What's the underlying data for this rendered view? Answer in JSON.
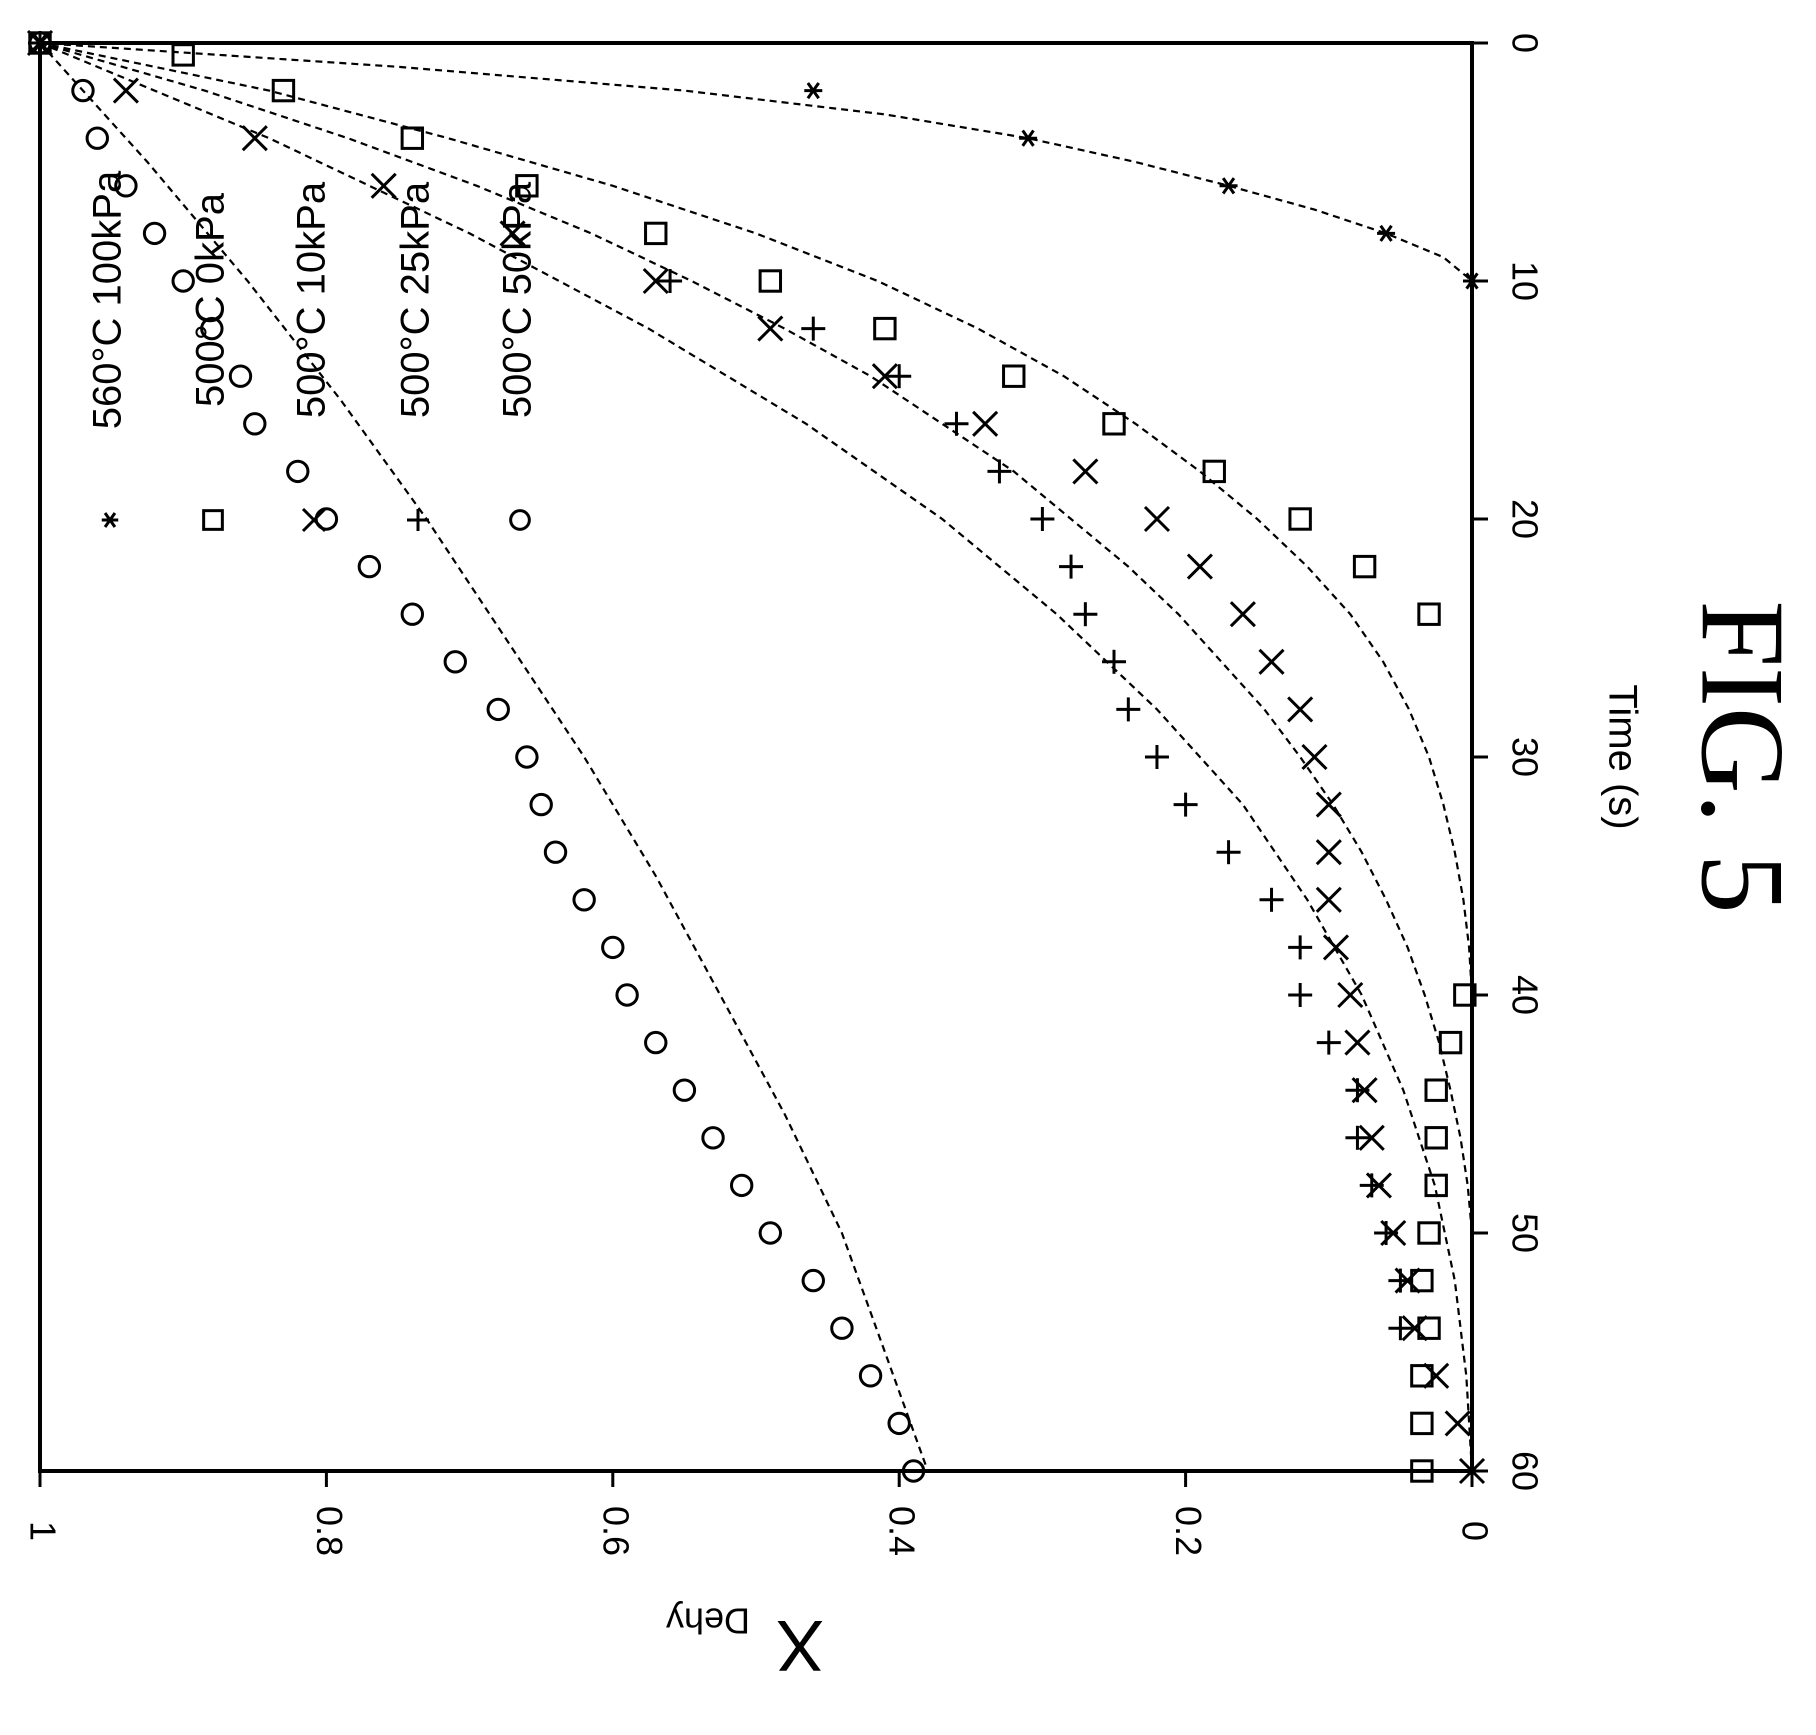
{
  "figure_label": "FIG. 5",
  "chart_data": {
    "type": "scatter",
    "title": "",
    "xlabel": "Time (s)",
    "ylabel_main": "X",
    "ylabel_sub": "Dehy",
    "xlim": [
      0,
      60
    ],
    "ylim": [
      0,
      1
    ],
    "x_ticks": [
      0,
      10,
      20,
      30,
      40,
      50,
      60
    ],
    "y_ticks": [
      0,
      0.2,
      0.4,
      0.6,
      0.8,
      1
    ],
    "y_tick_labels": [
      "0",
      "0.2",
      "0.4",
      "0.6",
      "0.8",
      "1"
    ],
    "orientation": "rotated 90 degrees clockwise",
    "grid": false,
    "legend_position": "top-left",
    "series": [
      {
        "name": "560°C 100kPa",
        "marker": "asterisk",
        "points": [
          [
            0,
            1.0
          ],
          [
            2,
            0.46
          ],
          [
            4,
            0.31
          ],
          [
            6,
            0.17
          ],
          [
            8,
            0.06
          ],
          [
            10,
            0.0
          ]
        ],
        "fit": [
          [
            0,
            1.0
          ],
          [
            1,
            0.75
          ],
          [
            2,
            0.55
          ],
          [
            3,
            0.41
          ],
          [
            4,
            0.31
          ],
          [
            5,
            0.235
          ],
          [
            6,
            0.17
          ],
          [
            7,
            0.11
          ],
          [
            8,
            0.06
          ],
          [
            9,
            0.02
          ],
          [
            10,
            0.0
          ]
        ]
      },
      {
        "name": "500°C 0kPa",
        "marker": "square",
        "points": [
          [
            0,
            1.0
          ],
          [
            0.5,
            0.9
          ],
          [
            2,
            0.83
          ],
          [
            4,
            0.74
          ],
          [
            6,
            0.66
          ],
          [
            8,
            0.57
          ],
          [
            10,
            0.49
          ],
          [
            12,
            0.41
          ],
          [
            14,
            0.32
          ],
          [
            16,
            0.25
          ],
          [
            18,
            0.18
          ],
          [
            20,
            0.12
          ],
          [
            22,
            0.075
          ],
          [
            24,
            0.03
          ],
          [
            40,
            0.005
          ],
          [
            42,
            0.015
          ],
          [
            44,
            0.025
          ],
          [
            46,
            0.025
          ],
          [
            48,
            0.025
          ],
          [
            50,
            0.03
          ],
          [
            52,
            0.035
          ],
          [
            54,
            0.03
          ],
          [
            56,
            0.035
          ],
          [
            58,
            0.035
          ],
          [
            60,
            0.035
          ]
        ],
        "fit": [
          [
            0,
            1.0
          ],
          [
            2,
            0.84
          ],
          [
            4,
            0.715
          ],
          [
            6,
            0.6
          ],
          [
            8,
            0.5
          ],
          [
            10,
            0.415
          ],
          [
            12,
            0.345
          ],
          [
            14,
            0.285
          ],
          [
            16,
            0.235
          ],
          [
            18,
            0.19
          ],
          [
            20,
            0.15
          ],
          [
            22,
            0.115
          ],
          [
            24,
            0.085
          ],
          [
            26,
            0.062
          ],
          [
            28,
            0.044
          ],
          [
            30,
            0.03
          ],
          [
            32,
            0.02
          ],
          [
            34,
            0.012
          ],
          [
            36,
            0.006
          ],
          [
            38,
            0.002
          ],
          [
            40,
            0.0
          ]
        ]
      },
      {
        "name": "500°C 10kPa",
        "marker": "x",
        "points": [
          [
            0,
            1.0
          ],
          [
            2,
            0.94
          ],
          [
            4,
            0.85
          ],
          [
            6,
            0.76
          ],
          [
            8,
            0.67
          ],
          [
            10,
            0.57
          ],
          [
            12,
            0.49
          ],
          [
            14,
            0.41
          ],
          [
            16,
            0.34
          ],
          [
            18,
            0.27
          ],
          [
            20,
            0.22
          ],
          [
            22,
            0.19
          ],
          [
            24,
            0.16
          ],
          [
            26,
            0.14
          ],
          [
            28,
            0.12
          ],
          [
            30,
            0.11
          ],
          [
            32,
            0.1
          ],
          [
            34,
            0.1
          ],
          [
            36,
            0.1
          ],
          [
            38,
            0.095
          ],
          [
            40,
            0.085
          ],
          [
            42,
            0.08
          ],
          [
            44,
            0.075
          ],
          [
            46,
            0.07
          ],
          [
            48,
            0.065
          ],
          [
            50,
            0.055
          ],
          [
            52,
            0.045
          ],
          [
            54,
            0.04
          ],
          [
            56,
            0.025
          ],
          [
            58,
            0.01
          ],
          [
            60,
            0.0
          ]
        ],
        "fit": [
          [
            0,
            1.0
          ],
          [
            2,
            0.885
          ],
          [
            4,
            0.785
          ],
          [
            6,
            0.695
          ],
          [
            8,
            0.615
          ],
          [
            10,
            0.545
          ],
          [
            12,
            0.48
          ],
          [
            14,
            0.42
          ],
          [
            16,
            0.37
          ],
          [
            18,
            0.32
          ],
          [
            20,
            0.28
          ],
          [
            22,
            0.24
          ],
          [
            24,
            0.205
          ],
          [
            26,
            0.175
          ],
          [
            28,
            0.145
          ],
          [
            30,
            0.12
          ],
          [
            32,
            0.097
          ],
          [
            34,
            0.077
          ],
          [
            36,
            0.06
          ],
          [
            38,
            0.045
          ],
          [
            40,
            0.033
          ],
          [
            42,
            0.023
          ],
          [
            44,
            0.015
          ],
          [
            46,
            0.008
          ],
          [
            48,
            0.003
          ],
          [
            50,
            0.0
          ]
        ]
      },
      {
        "name": "500°C 25kPa",
        "marker": "plus",
        "points": [
          [
            0,
            1.0
          ],
          [
            10,
            0.56
          ],
          [
            12,
            0.46
          ],
          [
            14,
            0.4
          ],
          [
            16,
            0.36
          ],
          [
            18,
            0.33
          ],
          [
            20,
            0.3
          ],
          [
            22,
            0.28
          ],
          [
            24,
            0.27
          ],
          [
            26,
            0.25
          ],
          [
            28,
            0.24
          ],
          [
            30,
            0.22
          ],
          [
            32,
            0.2
          ],
          [
            34,
            0.17
          ],
          [
            36,
            0.14
          ],
          [
            38,
            0.12
          ],
          [
            40,
            0.12
          ],
          [
            42,
            0.1
          ],
          [
            44,
            0.08
          ],
          [
            46,
            0.08
          ],
          [
            48,
            0.07
          ],
          [
            50,
            0.06
          ],
          [
            52,
            0.05
          ],
          [
            54,
            0.05
          ]
        ],
        "fit": [
          [
            0,
            1.0
          ],
          [
            4,
            0.84
          ],
          [
            8,
            0.7
          ],
          [
            12,
            0.575
          ],
          [
            16,
            0.465
          ],
          [
            20,
            0.37
          ],
          [
            24,
            0.29
          ],
          [
            28,
            0.22
          ],
          [
            32,
            0.16
          ],
          [
            36,
            0.115
          ],
          [
            40,
            0.077
          ],
          [
            44,
            0.048
          ],
          [
            48,
            0.026
          ],
          [
            52,
            0.012
          ],
          [
            56,
            0.004
          ],
          [
            60,
            0.0
          ]
        ]
      },
      {
        "name": "500°C 50kPa",
        "marker": "circle",
        "points": [
          [
            0,
            1.0
          ],
          [
            2,
            0.97
          ],
          [
            4,
            0.96
          ],
          [
            6,
            0.94
          ],
          [
            8,
            0.92
          ],
          [
            10,
            0.9
          ],
          [
            12,
            0.88
          ],
          [
            14,
            0.86
          ],
          [
            16,
            0.85
          ],
          [
            18,
            0.82
          ],
          [
            20,
            0.8
          ],
          [
            22,
            0.77
          ],
          [
            24,
            0.74
          ],
          [
            26,
            0.71
          ],
          [
            28,
            0.68
          ],
          [
            30,
            0.66
          ],
          [
            32,
            0.65
          ],
          [
            34,
            0.64
          ],
          [
            36,
            0.62
          ],
          [
            38,
            0.6
          ],
          [
            40,
            0.59
          ],
          [
            42,
            0.57
          ],
          [
            44,
            0.55
          ],
          [
            46,
            0.53
          ],
          [
            48,
            0.51
          ],
          [
            50,
            0.49
          ],
          [
            52,
            0.46
          ],
          [
            54,
            0.44
          ],
          [
            56,
            0.42
          ],
          [
            58,
            0.4
          ],
          [
            60,
            0.39
          ]
        ],
        "fit": [
          [
            0,
            1.0
          ],
          [
            5,
            0.925
          ],
          [
            10,
            0.855
          ],
          [
            15,
            0.79
          ],
          [
            20,
            0.73
          ],
          [
            25,
            0.675
          ],
          [
            30,
            0.62
          ],
          [
            35,
            0.57
          ],
          [
            40,
            0.525
          ],
          [
            45,
            0.48
          ],
          [
            50,
            0.44
          ],
          [
            55,
            0.41
          ],
          [
            60,
            0.38
          ]
        ]
      }
    ]
  }
}
